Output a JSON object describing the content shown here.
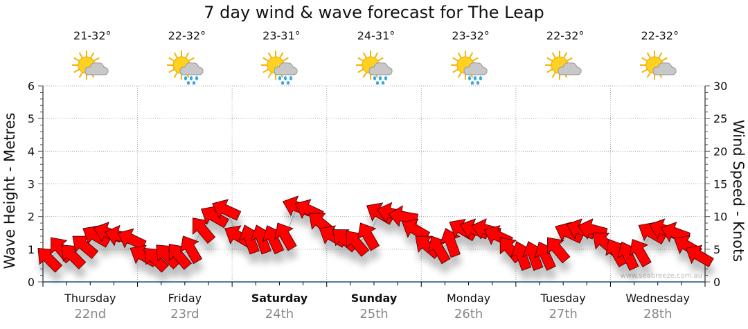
{
  "chart_data": {
    "type": "scatter",
    "title": "7 day wind & wave forecast for The Leap",
    "ylabel_left": "Wave Height - Metres",
    "ylabel_right": "Wind Speed - Knots",
    "ylim_left": [
      0,
      6
    ],
    "ylim_right": [
      0,
      30
    ],
    "yticks_left": [
      "0",
      "1",
      "2",
      "3",
      "4",
      "5",
      "6"
    ],
    "yticks_right": [
      "0",
      "5",
      "10",
      "15",
      "20",
      "25",
      "30"
    ],
    "grid": true,
    "days": [
      {
        "day": "Thursday",
        "date": "22nd",
        "temp": "21-32°",
        "weather": "partly-cloudy",
        "bold": false
      },
      {
        "day": "Friday",
        "date": "23rd",
        "temp": "22-32°",
        "weather": "showers",
        "bold": false
      },
      {
        "day": "Saturday",
        "date": "24th",
        "temp": "23-31°",
        "weather": "showers",
        "bold": true
      },
      {
        "day": "Sunday",
        "date": "25th",
        "temp": "24-31°",
        "weather": "showers",
        "bold": true
      },
      {
        "day": "Monday",
        "date": "26th",
        "temp": "23-32°",
        "weather": "showers",
        "bold": false
      },
      {
        "day": "Tuesday",
        "date": "27th",
        "temp": "22-32°",
        "weather": "partly-cloudy",
        "bold": false
      },
      {
        "day": "Wednesday",
        "date": "28th",
        "temp": "22-32°",
        "weather": "partly-cloudy",
        "bold": false
      }
    ],
    "wind_interval_hours": 3,
    "wind_knots": [
      3.5,
      5,
      4,
      5.5,
      7,
      7.5,
      7,
      6.5,
      4,
      3.5,
      4,
      4,
      5,
      8,
      10,
      11,
      7,
      6.5,
      6.5,
      6.5,
      7,
      11.5,
      11,
      9,
      7,
      6.5,
      6,
      7,
      10.5,
      10.5,
      10,
      8,
      5.5,
      5,
      6,
      8,
      8,
      8,
      7,
      5,
      4,
      4,
      4,
      5,
      7.5,
      8,
      8,
      6,
      4.5,
      4,
      4.5,
      7.5,
      8,
      7.5,
      5.5,
      4
    ],
    "wind_direction_deg": [
      315,
      320,
      315,
      310,
      300,
      290,
      285,
      295,
      300,
      315,
      315,
      320,
      330,
      320,
      300,
      295,
      300,
      340,
      340,
      335,
      330,
      290,
      295,
      310,
      300,
      310,
      320,
      330,
      300,
      285,
      280,
      300,
      310,
      330,
      340,
      300,
      290,
      285,
      295,
      320,
      340,
      340,
      335,
      320,
      295,
      290,
      285,
      310,
      330,
      335,
      330,
      300,
      290,
      290,
      300,
      300
    ],
    "watermark": "www.seabreeze.com.au"
  }
}
